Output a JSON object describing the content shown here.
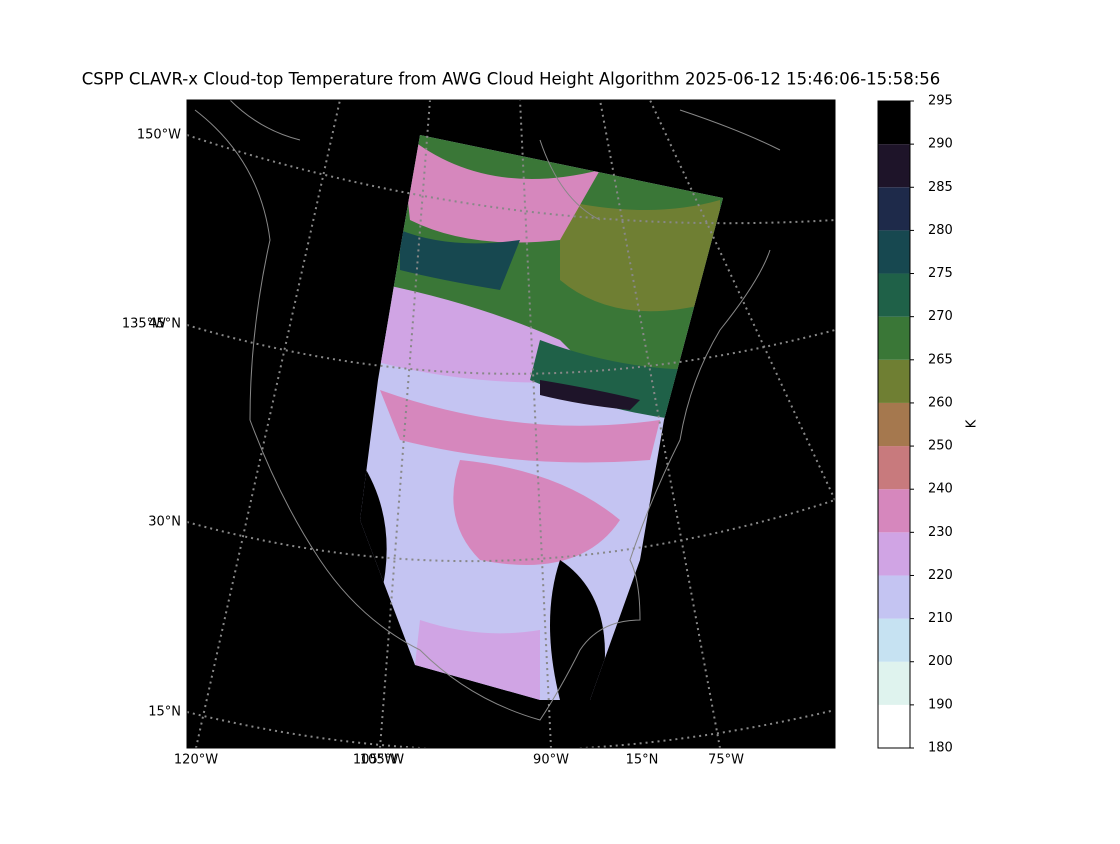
{
  "title": "CSPP CLAVR-x Cloud-top Temperature from AWG Cloud Height Algorithm 2025-06-12 15:46:06-15:58:56",
  "map": {
    "left_labels": [
      "150°W",
      "135°W",
      "45°N",
      "30°N",
      "15°N"
    ],
    "bottom_labels": [
      "120°W",
      "105°W",
      "105°W",
      "90°W",
      "15°N",
      "75°W"
    ]
  },
  "colorbar": {
    "label": "K",
    "ticks": [
      180,
      190,
      200,
      210,
      220,
      230,
      240,
      250,
      260,
      265,
      270,
      275,
      280,
      285,
      290,
      295
    ],
    "colors": [
      "#ffffff",
      "#dff3ee",
      "#c6e2f2",
      "#c4c4f2",
      "#d0a4e4",
      "#d687bd",
      "#c87a7d",
      "#a5784e",
      "#6f7f33",
      "#3a7737",
      "#1f6148",
      "#174850",
      "#1e2a4a",
      "#1e1429",
      "#000000"
    ]
  }
}
